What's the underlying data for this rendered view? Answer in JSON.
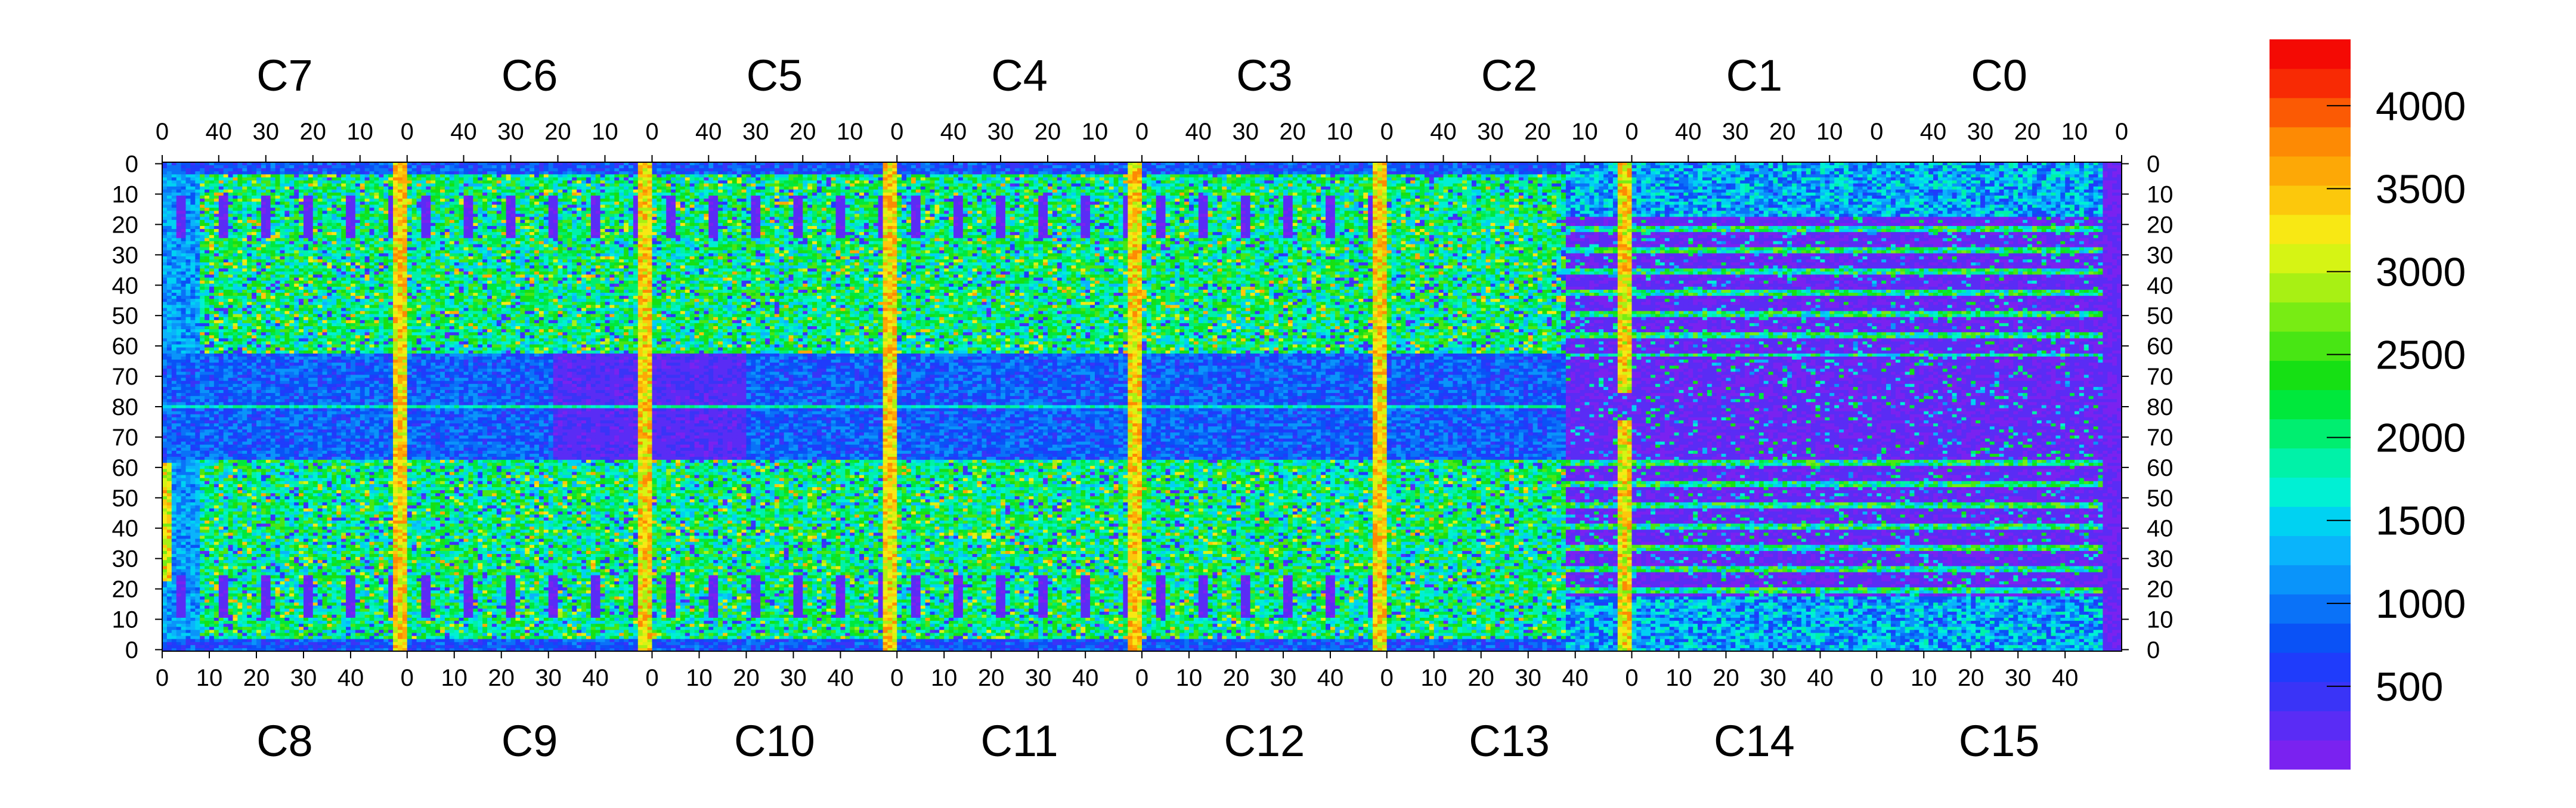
{
  "chart_data": {
    "type": "heatmap",
    "title": "",
    "xlabel": "",
    "ylabel": "",
    "grid": false,
    "top_chips": [
      "C7",
      "C6",
      "C5",
      "C4",
      "C3",
      "C2",
      "C1",
      "C0"
    ],
    "bottom_chips": [
      "C8",
      "C9",
      "C10",
      "C11",
      "C12",
      "C13",
      "C14",
      "C15"
    ],
    "chip_columns": 52,
    "rows_per_half": 80,
    "top_x_ticks": [
      "40",
      "30",
      "20",
      "10",
      "0"
    ],
    "top_x_tick_values": [
      40,
      30,
      20,
      10,
      0
    ],
    "bottom_x_ticks": [
      "0",
      "10",
      "20",
      "30",
      "40"
    ],
    "bottom_x_tick_values": [
      0,
      10,
      20,
      30,
      40
    ],
    "top_row_end_tick": "0",
    "y_ticks_top_half": [
      "0",
      "10",
      "20",
      "30",
      "40",
      "50",
      "60",
      "70",
      "80"
    ],
    "y_ticks_bottom_half": [
      "70",
      "60",
      "50",
      "40",
      "30",
      "20",
      "10",
      "0"
    ],
    "y_tick_values_top_half": [
      0,
      10,
      20,
      30,
      40,
      50,
      60,
      70,
      80
    ],
    "y_tick_values_bottom_half": [
      70,
      60,
      50,
      40,
      30,
      20,
      10,
      0
    ],
    "colorbar": {
      "min": 0,
      "max": 4400,
      "ticks": [
        "500",
        "1000",
        "1500",
        "2000",
        "2500",
        "3000",
        "3500",
        "4000"
      ],
      "tick_values": [
        500,
        1000,
        1500,
        2000,
        2500,
        3000,
        3500,
        4000
      ],
      "colors": [
        "#7a22f0",
        "#5a2cf5",
        "#3a34f7",
        "#1f3cfb",
        "#0a52f6",
        "#0a72f8",
        "#0a94fa",
        "#0ab4fb",
        "#00d2f2",
        "#00f0d4",
        "#00f2a8",
        "#00ee70",
        "#00e83c",
        "#16e014",
        "#48e614",
        "#78ec14",
        "#a8f014",
        "#d6f414",
        "#f8e814",
        "#fcc80c",
        "#fda806",
        "#fd8a04",
        "#fb5a04",
        "#f82a04",
        "#f40a04"
      ],
      "segment_width": 200
    }
  }
}
